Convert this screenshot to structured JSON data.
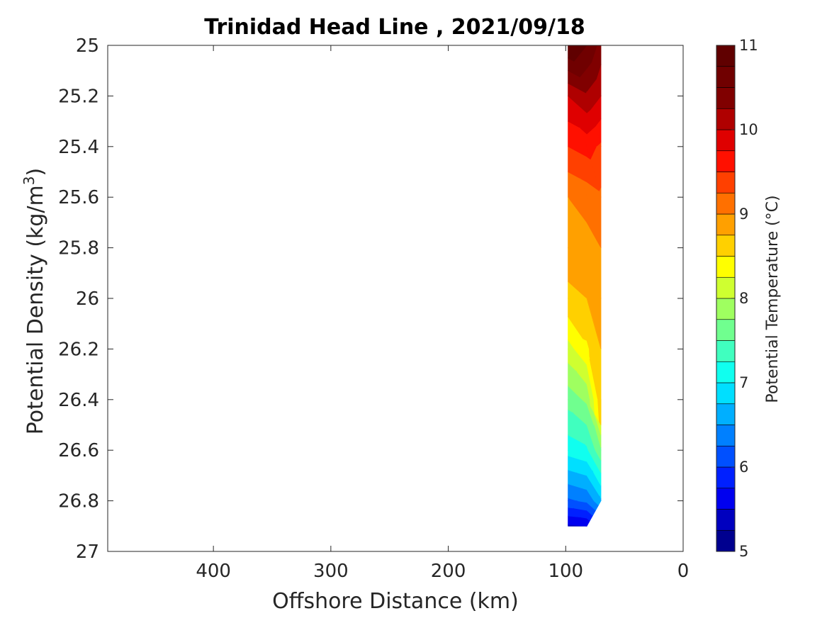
{
  "chart_data": {
    "type": "contour",
    "title": "Trinidad Head Line , 2021/09/18",
    "xlabel": "Offshore Distance (km)",
    "ylabel": "Potential Density (kg/m3)",
    "ylabel_main": "Potential Density (kg/m",
    "ylabel_sup": "3",
    "ylabel_close": ")",
    "x_axis": {
      "lim": [
        490,
        0
      ],
      "reversed": true,
      "ticks": [
        400,
        300,
        200,
        100,
        0
      ],
      "tick_labels": [
        "400",
        "300",
        "200",
        "100",
        "0"
      ]
    },
    "y_axis": {
      "lim": [
        25,
        27
      ],
      "reversed": true,
      "ticks": [
        25,
        25.2,
        25.4,
        25.6,
        25.8,
        26,
        26.2,
        26.4,
        26.6,
        26.8,
        27
      ],
      "tick_labels": [
        "25",
        "25.2",
        "25.4",
        "25.6",
        "25.8",
        "26",
        "26.2",
        "26.4",
        "26.6",
        "26.8",
        "27"
      ]
    },
    "colorbar": {
      "label": "Potential Temperature (°C)",
      "range": [
        5,
        11
      ],
      "ticks": [
        5,
        6,
        7,
        8,
        9,
        10,
        11
      ],
      "tick_labels": [
        "5",
        "6",
        "7",
        "8",
        "9",
        "10",
        "11"
      ],
      "levels": [
        5,
        5.25,
        5.5,
        5.75,
        6,
        6.25,
        6.5,
        6.75,
        7,
        7.25,
        7.5,
        7.75,
        8,
        8.25,
        8.5,
        8.75,
        9,
        9.25,
        9.5,
        9.75,
        10,
        10.25,
        10.5,
        10.75,
        11
      ],
      "colors": [
        "#00008f",
        "#0000bf",
        "#0000ef",
        "#0020ff",
        "#0050ff",
        "#0080ff",
        "#00afff",
        "#00dfff",
        "#10ffef",
        "#40ffbf",
        "#70ff8f",
        "#9fff60",
        "#cfff30",
        "#ffff00",
        "#ffd000",
        "#ffa000",
        "#ff7000",
        "#ff4000",
        "#ff1000",
        "#df0000",
        "#af0000",
        "#800000",
        "#700000",
        "#600000"
      ],
      "colormap": "jet"
    },
    "section": {
      "stations": [
        {
          "x": 98,
          "values": [
            11.0,
            10.0,
            9.5,
            9.0,
            8.85,
            8.7,
            8.15,
            7.6,
            7.1,
            6.2,
            5.45
          ]
        },
        {
          "x": 82,
          "values": [
            10.75,
            10.2,
            9.6,
            9.1,
            8.9,
            8.75,
            8.45,
            7.8,
            7.2,
            6.3,
            5.5
          ]
        },
        {
          "x": 70,
          "values": [
            10.4,
            10.0,
            9.45,
            9.2,
            9.0,
            8.85,
            8.75,
            8.7,
            7.7,
            6.7,
            null
          ]
        }
      ],
      "density_levels": [
        25.0,
        25.2,
        25.4,
        25.6,
        25.8,
        26.0,
        26.2,
        26.4,
        26.6,
        26.8,
        26.9
      ],
      "extra": {
        "x": 70,
        "density": 26.5,
        "value": 8.6
      }
    }
  }
}
